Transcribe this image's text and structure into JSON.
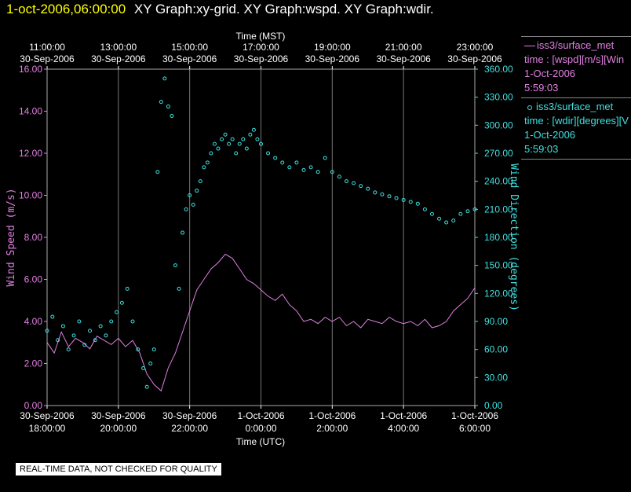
{
  "header": {
    "timestamp": "1-oct-2006,06:00:00",
    "graph_titles": "XY Graph:xy-grid.  XY Graph:wspd.  XY Graph:wdir."
  },
  "legend": {
    "entries": [
      {
        "name": "iss3/surface_met",
        "desc": "time : [wspd][m/s][Win",
        "date": "1-Oct-2006",
        "time": "5:59:03",
        "color": "#e080e0",
        "style": "line"
      },
      {
        "name": "iss3/surface_met",
        "desc": "time : [wdir][degrees][V",
        "date": "1-Oct-2006",
        "time": "5:59:03",
        "color": "#40e0e0",
        "style": "dot"
      }
    ]
  },
  "disclaimer": "REAL-TIME DATA, NOT CHECKED FOR QUALITY",
  "chart_data": {
    "type": "line",
    "top_axis": {
      "label": "Time (MST)",
      "ticks": [
        {
          "t": 0,
          "l1": "11:00:00",
          "l2": "30-Sep-2006"
        },
        {
          "t": 2,
          "l1": "13:00:00",
          "l2": "30-Sep-2006"
        },
        {
          "t": 4,
          "l1": "15:00:00",
          "l2": "30-Sep-2006"
        },
        {
          "t": 6,
          "l1": "17:00:00",
          "l2": "30-Sep-2006"
        },
        {
          "t": 8,
          "l1": "19:00:00",
          "l2": "30-Sep-2006"
        },
        {
          "t": 10,
          "l1": "21:00:00",
          "l2": "30-Sep-2006"
        },
        {
          "t": 12,
          "l1": "23:00:00",
          "l2": "30-Sep-2006"
        }
      ]
    },
    "bottom_axis": {
      "label": "Time (UTC)",
      "ticks": [
        {
          "t": 0,
          "l1": "30-Sep-2006",
          "l2": "18:00:00"
        },
        {
          "t": 2,
          "l1": "30-Sep-2006",
          "l2": "20:00:00"
        },
        {
          "t": 4,
          "l1": "30-Sep-2006",
          "l2": "22:00:00"
        },
        {
          "t": 6,
          "l1": "1-Oct-2006",
          "l2": "0:00:00"
        },
        {
          "t": 8,
          "l1": "1-Oct-2006",
          "l2": "2:00:00"
        },
        {
          "t": 10,
          "l1": "1-Oct-2006",
          "l2": "4:00:00"
        },
        {
          "t": 12,
          "l1": "1-Oct-2006",
          "l2": "6:00:00"
        }
      ]
    },
    "xlim": [
      0,
      12
    ],
    "grid": true,
    "left_axis": {
      "label": "Wind Speed (m/s)",
      "ylim": [
        0,
        16
      ],
      "ticks": [
        "0.00",
        "2.00",
        "4.00",
        "6.00",
        "8.00",
        "10.00",
        "12.00",
        "14.00",
        "16.00"
      ],
      "color": "#e080e0"
    },
    "right_axis": {
      "label": "Wind Direction (degrees)",
      "ylim": [
        0,
        360
      ],
      "ticks": [
        "0.00",
        "30.00",
        "60.00",
        "90.00",
        "120.00",
        "150.00",
        "180.00",
        "210.00",
        "240.00",
        "270.00",
        "300.00",
        "330.00",
        "360.00"
      ],
      "color": "#40e0e0"
    },
    "series": [
      {
        "name": "iss3/surface_met",
        "axis": "left",
        "style": "line",
        "color": "#e080e0",
        "x": [
          0,
          0.2,
          0.4,
          0.6,
          0.8,
          1.0,
          1.2,
          1.4,
          1.6,
          1.8,
          2.0,
          2.2,
          2.4,
          2.6,
          2.8,
          3.0,
          3.2,
          3.4,
          3.6,
          3.8,
          4.0,
          4.2,
          4.4,
          4.6,
          4.8,
          5.0,
          5.2,
          5.4,
          5.6,
          5.8,
          6.0,
          6.2,
          6.4,
          6.6,
          6.8,
          7.0,
          7.2,
          7.4,
          7.6,
          7.8,
          8.0,
          8.2,
          8.4,
          8.6,
          8.8,
          9.0,
          9.2,
          9.4,
          9.6,
          9.8,
          10.0,
          10.2,
          10.4,
          10.6,
          10.8,
          11.0,
          11.2,
          11.4,
          11.6,
          11.8,
          12.0
        ],
        "y": [
          3.0,
          2.5,
          3.5,
          2.8,
          3.2,
          3.0,
          2.7,
          3.3,
          3.1,
          2.9,
          3.2,
          2.8,
          3.1,
          2.5,
          1.5,
          1.0,
          0.7,
          1.8,
          2.5,
          3.5,
          4.5,
          5.5,
          6.0,
          6.5,
          6.8,
          7.2,
          7.0,
          6.5,
          6.0,
          5.8,
          5.5,
          5.2,
          5.0,
          5.3,
          4.8,
          4.5,
          4.0,
          4.1,
          3.9,
          4.2,
          4.0,
          4.2,
          3.8,
          4.0,
          3.7,
          4.1,
          4.0,
          3.9,
          4.2,
          4.0,
          3.9,
          4.0,
          3.8,
          4.1,
          3.7,
          3.8,
          4.0,
          4.5,
          4.8,
          5.1,
          5.6
        ]
      },
      {
        "name": "iss3/surface_met",
        "axis": "right",
        "style": "dot",
        "color": "#40e0e0",
        "x": [
          0,
          0.15,
          0.3,
          0.45,
          0.6,
          0.75,
          0.9,
          1.05,
          1.2,
          1.35,
          1.5,
          1.65,
          1.8,
          1.95,
          2.1,
          2.25,
          2.4,
          2.55,
          2.7,
          2.8,
          2.9,
          3.0,
          3.1,
          3.2,
          3.3,
          3.4,
          3.5,
          3.6,
          3.7,
          3.8,
          3.9,
          4.0,
          4.1,
          4.2,
          4.3,
          4.4,
          4.5,
          4.6,
          4.7,
          4.8,
          4.9,
          5.0,
          5.1,
          5.2,
          5.3,
          5.4,
          5.5,
          5.6,
          5.7,
          5.8,
          5.9,
          6.0,
          6.2,
          6.4,
          6.6,
          6.8,
          7.0,
          7.2,
          7.4,
          7.6,
          7.8,
          8.0,
          8.2,
          8.4,
          8.6,
          8.8,
          9.0,
          9.2,
          9.4,
          9.6,
          9.8,
          10.0,
          10.2,
          10.4,
          10.6,
          10.8,
          11.0,
          11.2,
          11.4,
          11.6,
          11.8,
          12.0
        ],
        "y": [
          80,
          95,
          70,
          85,
          60,
          75,
          90,
          65,
          80,
          70,
          85,
          75,
          90,
          100,
          110,
          125,
          90,
          60,
          40,
          20,
          45,
          60,
          250,
          325,
          350,
          320,
          310,
          150,
          125,
          185,
          210,
          225,
          215,
          230,
          240,
          255,
          260,
          270,
          280,
          275,
          285,
          290,
          280,
          285,
          270,
          280,
          285,
          275,
          290,
          295,
          285,
          280,
          270,
          265,
          260,
          255,
          260,
          252,
          255,
          250,
          265,
          250,
          245,
          240,
          238,
          235,
          232,
          228,
          226,
          224,
          222,
          220,
          218,
          216,
          210,
          205,
          200,
          196,
          198,
          205,
          208,
          210
        ]
      }
    ]
  }
}
